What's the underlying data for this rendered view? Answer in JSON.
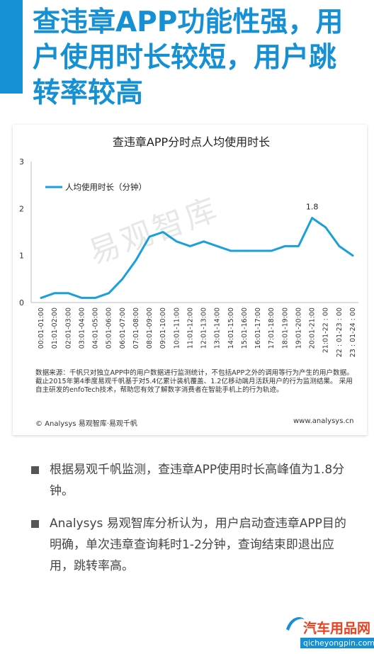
{
  "headline": {
    "lines": [
      "查违章APP功能性强，用",
      "户使用时长较短，用户跳",
      "转率较高"
    ]
  },
  "watermark": "易观智库",
  "chart_data": {
    "type": "line",
    "title": "查违章APP分时点人均使用时长",
    "xlabel": "",
    "ylabel": "",
    "ylim": [
      0,
      3
    ],
    "yticks": [
      0,
      1,
      2,
      3
    ],
    "grid": false,
    "legend_position": "top-left",
    "categories": [
      "00:01-01:00",
      "01:01-02:00",
      "02:01-03:00",
      "03:01-04:00",
      "04:01-05:00",
      "05:01-06:00",
      "06:01-07:00",
      "07:01-08:00",
      "08:01-09:00",
      "09:01-10:00",
      "10:01-11:00",
      "11:01-12:00",
      "12:01-13:00",
      "13:01-14:00",
      "14:01-15:00",
      "15:01-16:00",
      "16:01-17:00",
      "17:01-18:00",
      "18:01-19:00",
      "19:01-20:00",
      "20:01-21:00",
      "21:01-22 : 00",
      "22 : 01-23 : 00",
      "23 : 01-24 : 00"
    ],
    "series": [
      {
        "name": "人均使用时长（分钟）",
        "color": "#1aa0d8",
        "values": [
          0.1,
          0.2,
          0.2,
          0.1,
          0.1,
          0.2,
          0.5,
          0.9,
          1.4,
          1.5,
          1.3,
          1.2,
          1.3,
          1.2,
          1.1,
          1.1,
          1.1,
          1.1,
          1.2,
          1.2,
          1.8,
          1.6,
          1.2,
          1.0
        ]
      }
    ],
    "annotations": [
      {
        "index": 20,
        "label": "1.8"
      }
    ]
  },
  "source_note": "数据来源：千帆只对独立APP中的用户数据进行监测统计，不包括APP之外的调用等行为产生的用户数据。截止2015年第4季度易观千帆基于对5.4亿累计装机覆盖、1.2亿移动端月活跃用户的行为监测结果。 采用自主研发的enfoTech技术，帮助您有效了解数字消费者在智能手机上的行为轨迹。",
  "copyright": {
    "left": "© Analysys 易观智库·易观千帆",
    "right": "www.analysys.cn"
  },
  "bullets": [
    "根据易观千帆监测，查违章APP使用时长高峰值为1.8分钟。",
    "Analysys 易观智库分析认为，用户启动查违章APP目的明确，单次违章查询耗时1-2分钟，查询结束即退出应用，跳转率高。"
  ],
  "footer_logo": {
    "name": "汽车用品网",
    "url": "qicheyongpin.com"
  },
  "colors": {
    "accent": "#1590d4",
    "line": "#1aa0d8",
    "logo_red": "#e8421f"
  }
}
